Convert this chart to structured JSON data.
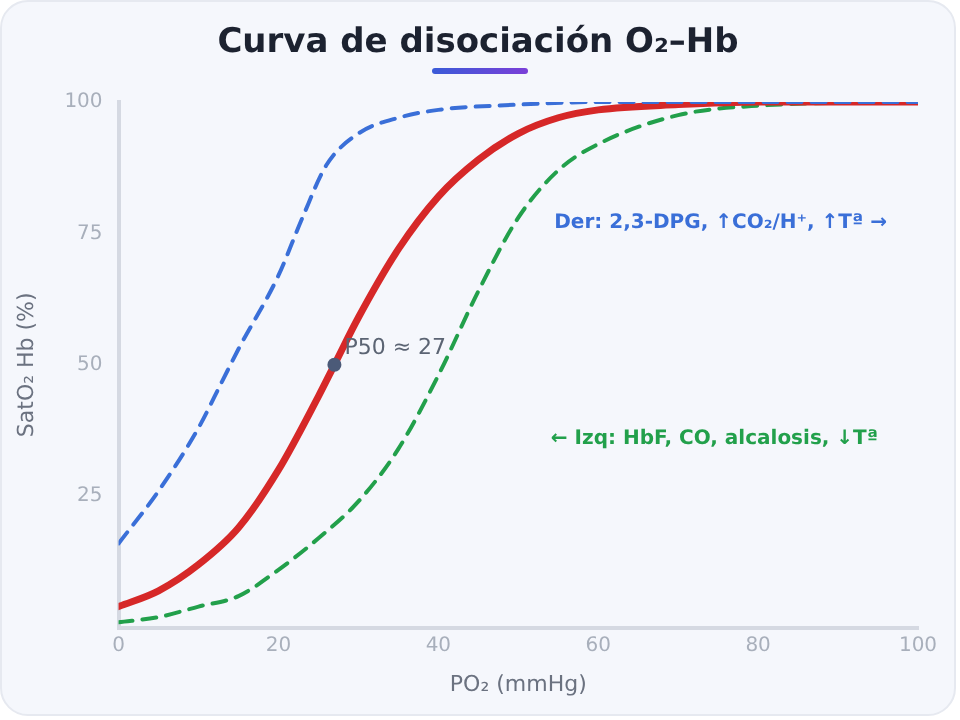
{
  "chart_data": {
    "type": "line",
    "title": "Curva de disociación O₂–Hb",
    "xlabel": "PO₂ (mmHg)",
    "ylabel": "SatO₂ Hb (%)",
    "xlim": [
      0,
      100
    ],
    "xticks": [
      0,
      20,
      40,
      60,
      80,
      100
    ],
    "ylim": [
      0,
      100
    ],
    "yticks": [
      25,
      50,
      75,
      100
    ],
    "grid": false,
    "legend": false,
    "marker": "none",
    "series": [
      {
        "color": "#3a6fd8",
        "line_style": "dashed",
        "x": [
          0,
          5,
          10,
          13,
          15,
          20,
          23,
          26,
          30,
          35,
          40,
          50,
          60,
          80,
          100
        ],
        "values": [
          16,
          26,
          38,
          47,
          53,
          67,
          78,
          88,
          94,
          97,
          98.5,
          99.5,
          100,
          100,
          100
        ]
      },
      {
        "color": "#d62828",
        "line_style": "solid",
        "x": [
          0,
          5,
          10,
          15,
          20,
          25,
          27,
          30,
          35,
          40,
          45,
          50,
          55,
          60,
          70,
          80,
          100
        ],
        "values": [
          4,
          7,
          12,
          19,
          30,
          44,
          50,
          59,
          72,
          82,
          89,
          94,
          97,
          98.5,
          99.5,
          100,
          100
        ]
      },
      {
        "color": "#22a04b",
        "line_style": "dashed",
        "x": [
          0,
          5,
          10,
          15,
          20,
          25,
          30,
          35,
          40,
          45,
          50,
          55,
          60,
          70,
          80,
          100
        ],
        "values": [
          1,
          2,
          4,
          6,
          11,
          17,
          24,
          34,
          48,
          64,
          78,
          87,
          92,
          97.5,
          99.3,
          100
        ]
      }
    ],
    "annotations": [
      {
        "text": "P50 ≈ 27",
        "x": 27,
        "y": 50
      },
      "Der: 2,3-DPG, ↑CO₂/H⁺, ↑Tª →",
      "← Izq: HbF, CO, alcalosis, ↓Tª"
    ]
  }
}
